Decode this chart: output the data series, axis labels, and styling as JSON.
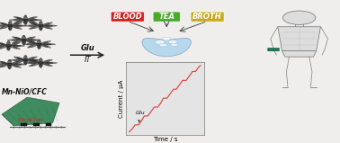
{
  "fig_width": 3.78,
  "fig_height": 1.59,
  "dpi": 100,
  "bg_color": "#f0eeec",
  "labels": {
    "mn_nio": "Mn-NiO/CFC",
    "xlabel": "Time / s",
    "ylabel": "Current / μA",
    "glu_label": "Glu",
    "glu_arrow": "Glu",
    "it_arrow": "IT"
  },
  "blood_color": "#d42020",
  "tea_color": "#4aaa28",
  "broth_color": "#c8a820",
  "drop_color": "#b0d4ee",
  "drop_edge": "#80aace",
  "bubble_color": "#ddeeff",
  "plot_bg": "#e4e4e4",
  "line_color": "#dd4444",
  "it_curve_x": [
    0.0,
    0.04,
    0.08,
    0.13,
    0.17,
    0.21,
    0.26,
    0.3,
    0.35,
    0.4,
    0.44,
    0.48,
    0.53,
    0.57,
    0.62,
    0.66,
    0.7,
    0.75,
    0.8,
    0.84,
    0.89,
    0.93,
    0.97,
    1.0
  ],
  "it_curve_y": [
    0.03,
    0.06,
    0.1,
    0.1,
    0.14,
    0.19,
    0.19,
    0.23,
    0.28,
    0.28,
    0.32,
    0.37,
    0.37,
    0.41,
    0.46,
    0.46,
    0.5,
    0.55,
    0.55,
    0.59,
    0.64,
    0.64,
    0.68,
    0.7
  ],
  "nano_color1": "#3a3a3a",
  "nano_color2": "#555555",
  "nano_color3": "#6a6a6a",
  "nano_edge": "#1a1a1a",
  "human_color": "#888888",
  "sensor_color": "#1a7a5a",
  "badge_fontsize": 6.0,
  "axis_fontsize": 5.0,
  "label_fontsize": 5.5
}
